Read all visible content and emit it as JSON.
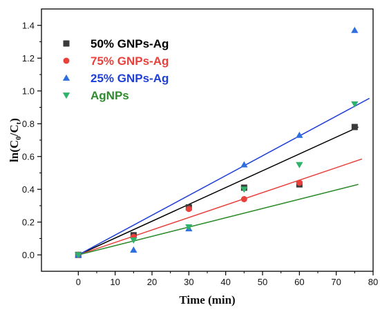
{
  "chart_data": {
    "type": "scatter",
    "xlabel": "Time (min)",
    "ylabel": {
      "prefix": "ln(C",
      "sub1": "0",
      "mid": "/C",
      "sub2": "t",
      "suffix": ")"
    },
    "xlim": [
      -10,
      80
    ],
    "ylim": [
      -0.1,
      1.5
    ],
    "xticks": [
      0,
      10,
      20,
      30,
      40,
      50,
      60,
      70,
      80
    ],
    "yticks": [
      0.0,
      0.2,
      0.4,
      0.6,
      0.8,
      1.0,
      1.2,
      1.4
    ],
    "ytick_labels": [
      "0.0",
      "0.2",
      "0.4",
      "0.6",
      "0.8",
      "1.0",
      "1.2",
      "1.4"
    ],
    "grid": false,
    "legend_position": "top-left",
    "series": [
      {
        "name": "50% GNPs-Ag",
        "marker": "square",
        "color": "#3a3a3a",
        "line_color": "#000000",
        "x": [
          0,
          15,
          30,
          45,
          60,
          75
        ],
        "y": [
          0.0,
          0.12,
          0.29,
          0.41,
          0.43,
          0.78
        ],
        "fit": {
          "x": [
            0,
            76
          ],
          "y": [
            0.0,
            0.78
          ]
        }
      },
      {
        "name": "75% GNPs-Ag",
        "marker": "circle",
        "color": "#e8413c",
        "line_color": "#e8413c",
        "x": [
          0,
          15,
          30,
          45,
          60
        ],
        "y": [
          0.0,
          0.11,
          0.28,
          0.34,
          0.44
        ],
        "fit": {
          "x": [
            0,
            77
          ],
          "y": [
            0.0,
            0.585
          ]
        }
      },
      {
        "name": "25% GNPs-Ag",
        "marker": "triangle-up",
        "color": "#2e6fe0",
        "line_color": "#1f3fd6",
        "x": [
          0,
          15,
          30,
          45,
          60,
          75
        ],
        "y": [
          0.0,
          0.03,
          0.16,
          0.55,
          0.73,
          1.37
        ],
        "fit": {
          "x": [
            0,
            79
          ],
          "y": [
            0.0,
            0.955
          ]
        }
      },
      {
        "name": "AgNPs",
        "marker": "triangle-down",
        "color": "#2fb36a",
        "line_color": "#2e8b2e",
        "x": [
          0,
          15,
          30,
          45,
          60,
          75
        ],
        "y": [
          0.0,
          0.09,
          0.17,
          0.4,
          0.55,
          0.92
        ],
        "fit": {
          "x": [
            0,
            76
          ],
          "y": [
            0.0,
            0.43
          ]
        }
      }
    ]
  }
}
